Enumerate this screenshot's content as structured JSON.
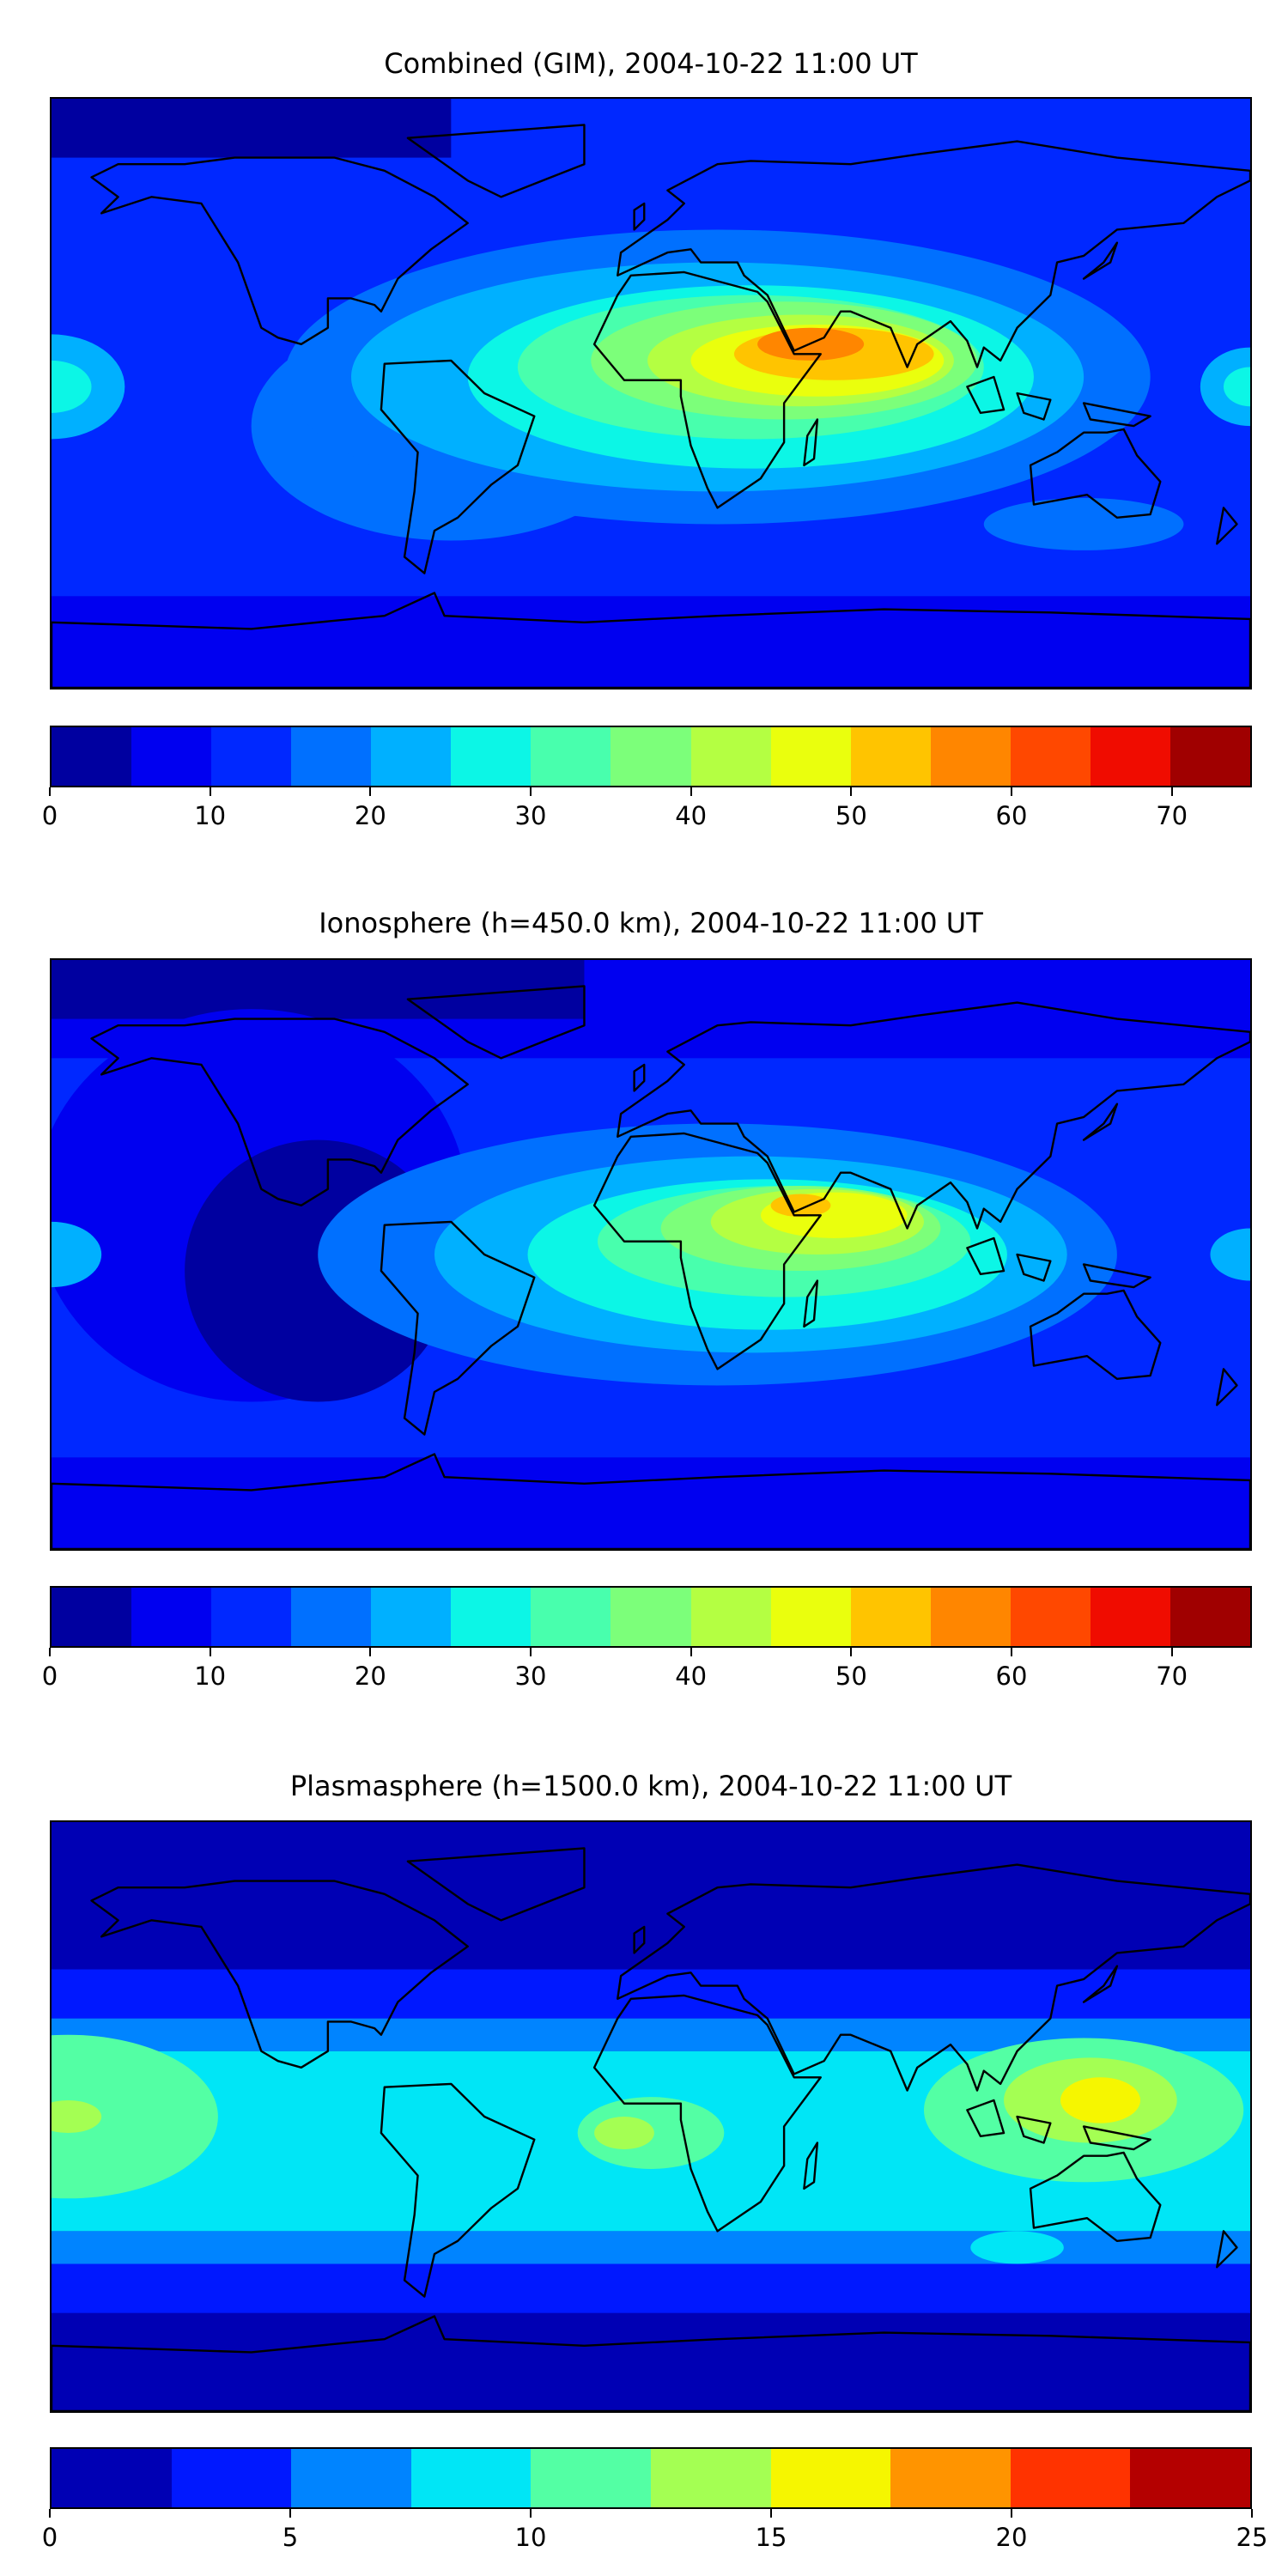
{
  "chart_data": [
    {
      "type": "heatmap",
      "title": "Combined (GIM), 2004-10-22 11:00 UT",
      "description_levels": [
        0,
        5,
        10,
        15,
        20,
        25,
        30,
        35,
        40,
        45,
        50,
        55,
        60,
        65,
        70,
        75
      ],
      "colorbar": {
        "ticks": [
          0,
          10,
          20,
          30,
          40,
          50,
          60,
          70
        ],
        "range": [
          0,
          75
        ],
        "colors": [
          "#0000a0",
          "#0000f0",
          "#0028ff",
          "#0070ff",
          "#00b0ff",
          "#0cf6e6",
          "#48ffad",
          "#7cff7a",
          "#b4ff42",
          "#eaff0d",
          "#ffc400",
          "#ff8600",
          "#ff4800",
          "#f00c00",
          "#a00000"
        ]
      },
      "peak_region": "Africa / Arabia, ~55-60"
    },
    {
      "type": "heatmap",
      "title": "Ionosphere  (h=450.0 km), 2004-10-22 11:00 UT",
      "colorbar": {
        "ticks": [
          0,
          10,
          20,
          30,
          40,
          50,
          60,
          70
        ],
        "range": [
          0,
          75
        ],
        "colors": [
          "#0000a0",
          "#0000f0",
          "#0028ff",
          "#0070ff",
          "#00b0ff",
          "#0cf6e6",
          "#48ffad",
          "#7cff7a",
          "#b4ff42",
          "#eaff0d",
          "#ffc400",
          "#ff8600",
          "#ff4800",
          "#f00c00",
          "#a00000"
        ]
      },
      "peak_region": "Arabia, ~50-55"
    },
    {
      "type": "heatmap",
      "title": "Plasmasphere (h=1500.0 km), 2004-10-22 11:00 UT",
      "colorbar": {
        "ticks": [
          0,
          5,
          10,
          15,
          20,
          25
        ],
        "range": [
          0,
          25
        ],
        "colors": [
          "#0000b4",
          "#0018ff",
          "#0084ff",
          "#00e6f6",
          "#53ffa4",
          "#a4ff53",
          "#f6f600",
          "#ff9400",
          "#ff3300",
          "#b40000"
        ]
      },
      "peak_region": "Maritime Continent, ~15-17.5"
    }
  ]
}
